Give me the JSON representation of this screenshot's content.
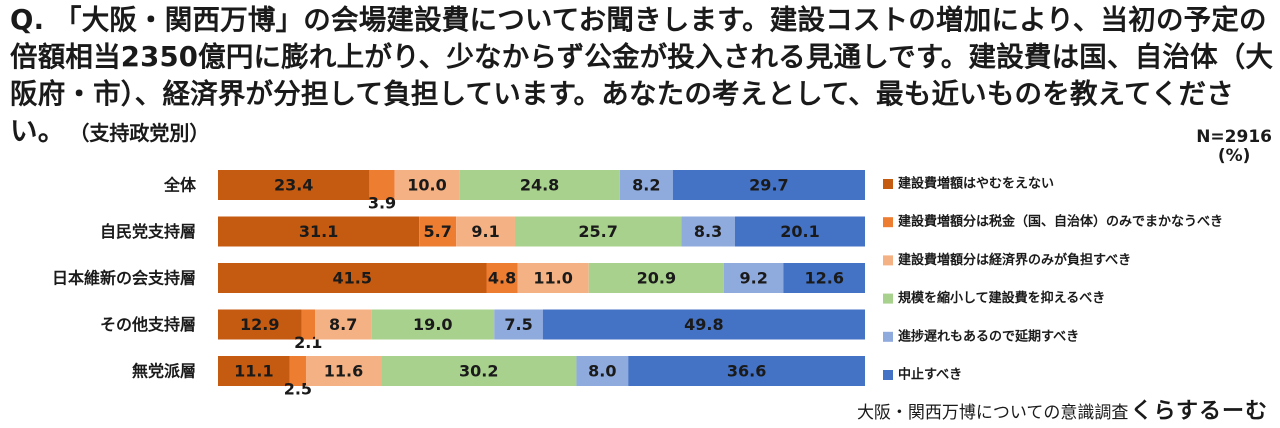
{
  "question": {
    "text": "Q. 「大阪・関西万博」の会場建設費についてお聞きします。建設コストの増加により、当初の予定の倍額相当2350億円に膨れ上がり、少なからず公金が投入される見通しです。建設費は国、自治体（大阪府・市）、経済界が分担して負担しています。あなたの考えとして、最も近いものを教えてください。",
    "sub": "（支持政党別）"
  },
  "sample": {
    "n": "N=2916",
    "unit": "(%)"
  },
  "source": {
    "text": "大阪・関西万博についての意識調査",
    "brand": "くらするーむ"
  },
  "chart_data": {
    "type": "bar",
    "orientation": "horizontal",
    "stacked": true,
    "categories": [
      "全体",
      "自民党支持層",
      "日本維新の会支持層",
      "その他支持層",
      "無党派層"
    ],
    "series": [
      {
        "name": "建設費増額はやむをえない",
        "color": "#c55a11",
        "values": [
          23.4,
          31.1,
          41.5,
          12.9,
          11.1
        ]
      },
      {
        "name": "建設費増額分は税金（国、自治体）のみでまかなうべき",
        "color": "#ed7d31",
        "values": [
          3.9,
          5.7,
          4.8,
          2.1,
          2.5
        ]
      },
      {
        "name": "建設費増額分は経済界のみが負担すべき",
        "color": "#f4b183",
        "values": [
          10.0,
          9.1,
          11.0,
          8.7,
          11.6
        ]
      },
      {
        "name": "規模を縮小して建設費を抑えるべき",
        "color": "#a9d18e",
        "values": [
          24.8,
          25.7,
          20.9,
          19.0,
          30.2
        ]
      },
      {
        "name": "進捗遅れもあるので延期すべき",
        "color": "#8faadc",
        "values": [
          8.2,
          8.3,
          9.2,
          7.5,
          8.0
        ]
      },
      {
        "name": "中止すべき",
        "color": "#4472c4",
        "values": [
          29.7,
          20.1,
          12.6,
          49.8,
          36.6
        ]
      }
    ],
    "xlim": [
      0,
      100
    ],
    "legend": "right",
    "grid": false
  }
}
